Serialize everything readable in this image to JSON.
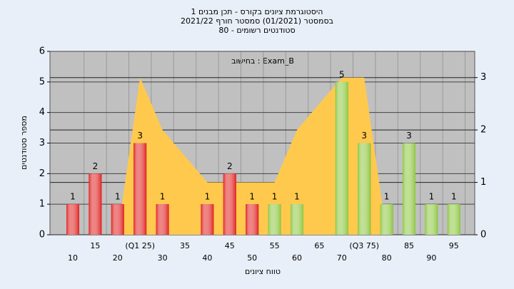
{
  "chart_data": {
    "type": "bar",
    "title": [
      "היסטוגרמת ציונים בקורס - תכן מבנים 1",
      "בסמסטר  (01/2021)  סמסטר חורף 2021/22",
      "80 - סטודנטים רשומים"
    ],
    "annotation": "בחישוב : Exam_B",
    "xlabel": "טווח ציונים",
    "ylabel": "מספר סטודנטים",
    "categories": [
      "10",
      "15",
      "20",
      "(Q1 25)",
      "30",
      "35",
      "40",
      "45",
      "50",
      "55",
      "60",
      "65",
      "70",
      "(Q3 75)",
      "80",
      "85",
      "90",
      "95"
    ],
    "values": [
      1,
      2,
      1,
      3,
      1,
      0,
      1,
      2,
      1,
      1,
      1,
      0,
      5,
      3,
      1,
      3,
      1,
      1
    ],
    "colors": [
      "#e02020",
      "#e02020",
      "#e02020",
      "#e02020",
      "#e02020",
      "#e02020",
      "#e02020",
      "#e02020",
      "#e02020",
      "#8cc63f",
      "#8cc63f",
      "#8cc63f",
      "#8cc63f",
      "#8cc63f",
      "#8cc63f",
      "#8cc63f",
      "#8cc63f",
      "#8cc63f"
    ],
    "area": {
      "color": "#ffc94d",
      "axis": "y2",
      "values": [
        null,
        null,
        0,
        3,
        2,
        1.5,
        1,
        1,
        1,
        1,
        2,
        2.5,
        3,
        3,
        0,
        null,
        null,
        null
      ]
    },
    "ylim": [
      0,
      6
    ],
    "yticks": [
      0,
      1,
      2,
      3,
      4,
      5,
      6
    ],
    "y2lim": [
      0,
      3.5
    ],
    "y2ticks": [
      0,
      1,
      2,
      3
    ],
    "grid": true
  }
}
